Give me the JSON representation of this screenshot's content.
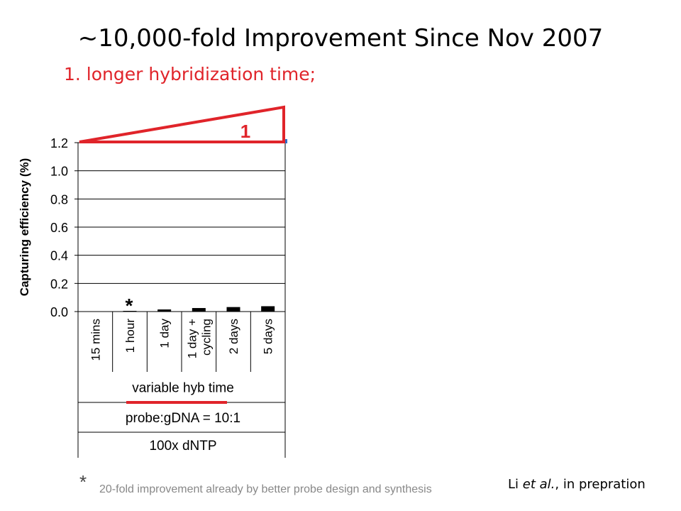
{
  "slide": {
    "title": "~10,000-fold Improvement Since Nov 2007",
    "subtitle": "1. longer hybridization time;",
    "footnote_marker": "*",
    "footnote": "20-fold improvement already by better probe design and synthesis",
    "citation_prefix": "Li ",
    "citation_italic": "et al.",
    "citation_suffix": ", in prepration"
  },
  "chart_data": {
    "type": "bar",
    "categories": [
      "15 mins",
      "1 hour",
      "1 day",
      "1 day +\ncycling",
      "2 days",
      "5 days"
    ],
    "values": [
      0.0,
      0.005,
      0.015,
      0.025,
      0.032,
      0.038
    ],
    "ylabel": "Capturing efficiency (%)",
    "ylim": [
      0,
      1.2
    ],
    "yticks": [
      "0.0",
      "0.2",
      "0.4",
      "0.6",
      "0.8",
      "1.0",
      "1.2"
    ],
    "ytick_values": [
      0,
      0.2,
      0.4,
      0.6,
      0.8,
      1.0,
      1.2
    ],
    "bar_color": "#000000",
    "grid": true,
    "annotation_star": "*",
    "annotation_star_category_index": 1,
    "conditions": [
      "variable hyb time",
      "probe:gDNA = 10:1",
      "100x dNTP"
    ],
    "triangle_label": "1",
    "accent_color": "#e0242a"
  }
}
